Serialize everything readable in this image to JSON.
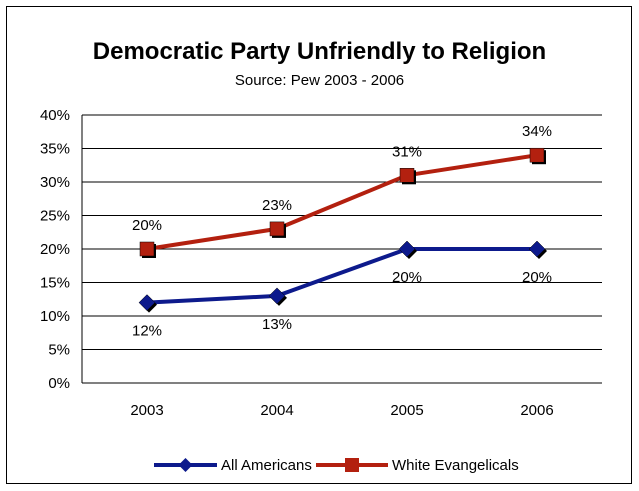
{
  "chart_data": {
    "type": "line",
    "title": "Democratic Party Unfriendly to Religion",
    "subtitle": "Source: Pew 2003 - 2006",
    "categories": [
      "2003",
      "2004",
      "2005",
      "2006"
    ],
    "ylim": [
      0,
      40
    ],
    "y_ticks": [
      0,
      5,
      10,
      15,
      20,
      25,
      30,
      35,
      40
    ],
    "y_tick_format": "%",
    "grid": true,
    "legend_position": "bottom",
    "series": [
      {
        "name": "All Americans",
        "values": [
          12,
          13,
          20,
          20
        ],
        "labels": [
          "12%",
          "13%",
          "20%",
          "20%"
        ],
        "color": "#0d1a8c",
        "marker": "diamond",
        "label_position": "below"
      },
      {
        "name": "White Evangelicals",
        "values": [
          20,
          23,
          31,
          34
        ],
        "labels": [
          "20%",
          "23%",
          "31%",
          "34%"
        ],
        "color": "#b3200f",
        "marker": "square",
        "label_position": "above"
      }
    ]
  }
}
